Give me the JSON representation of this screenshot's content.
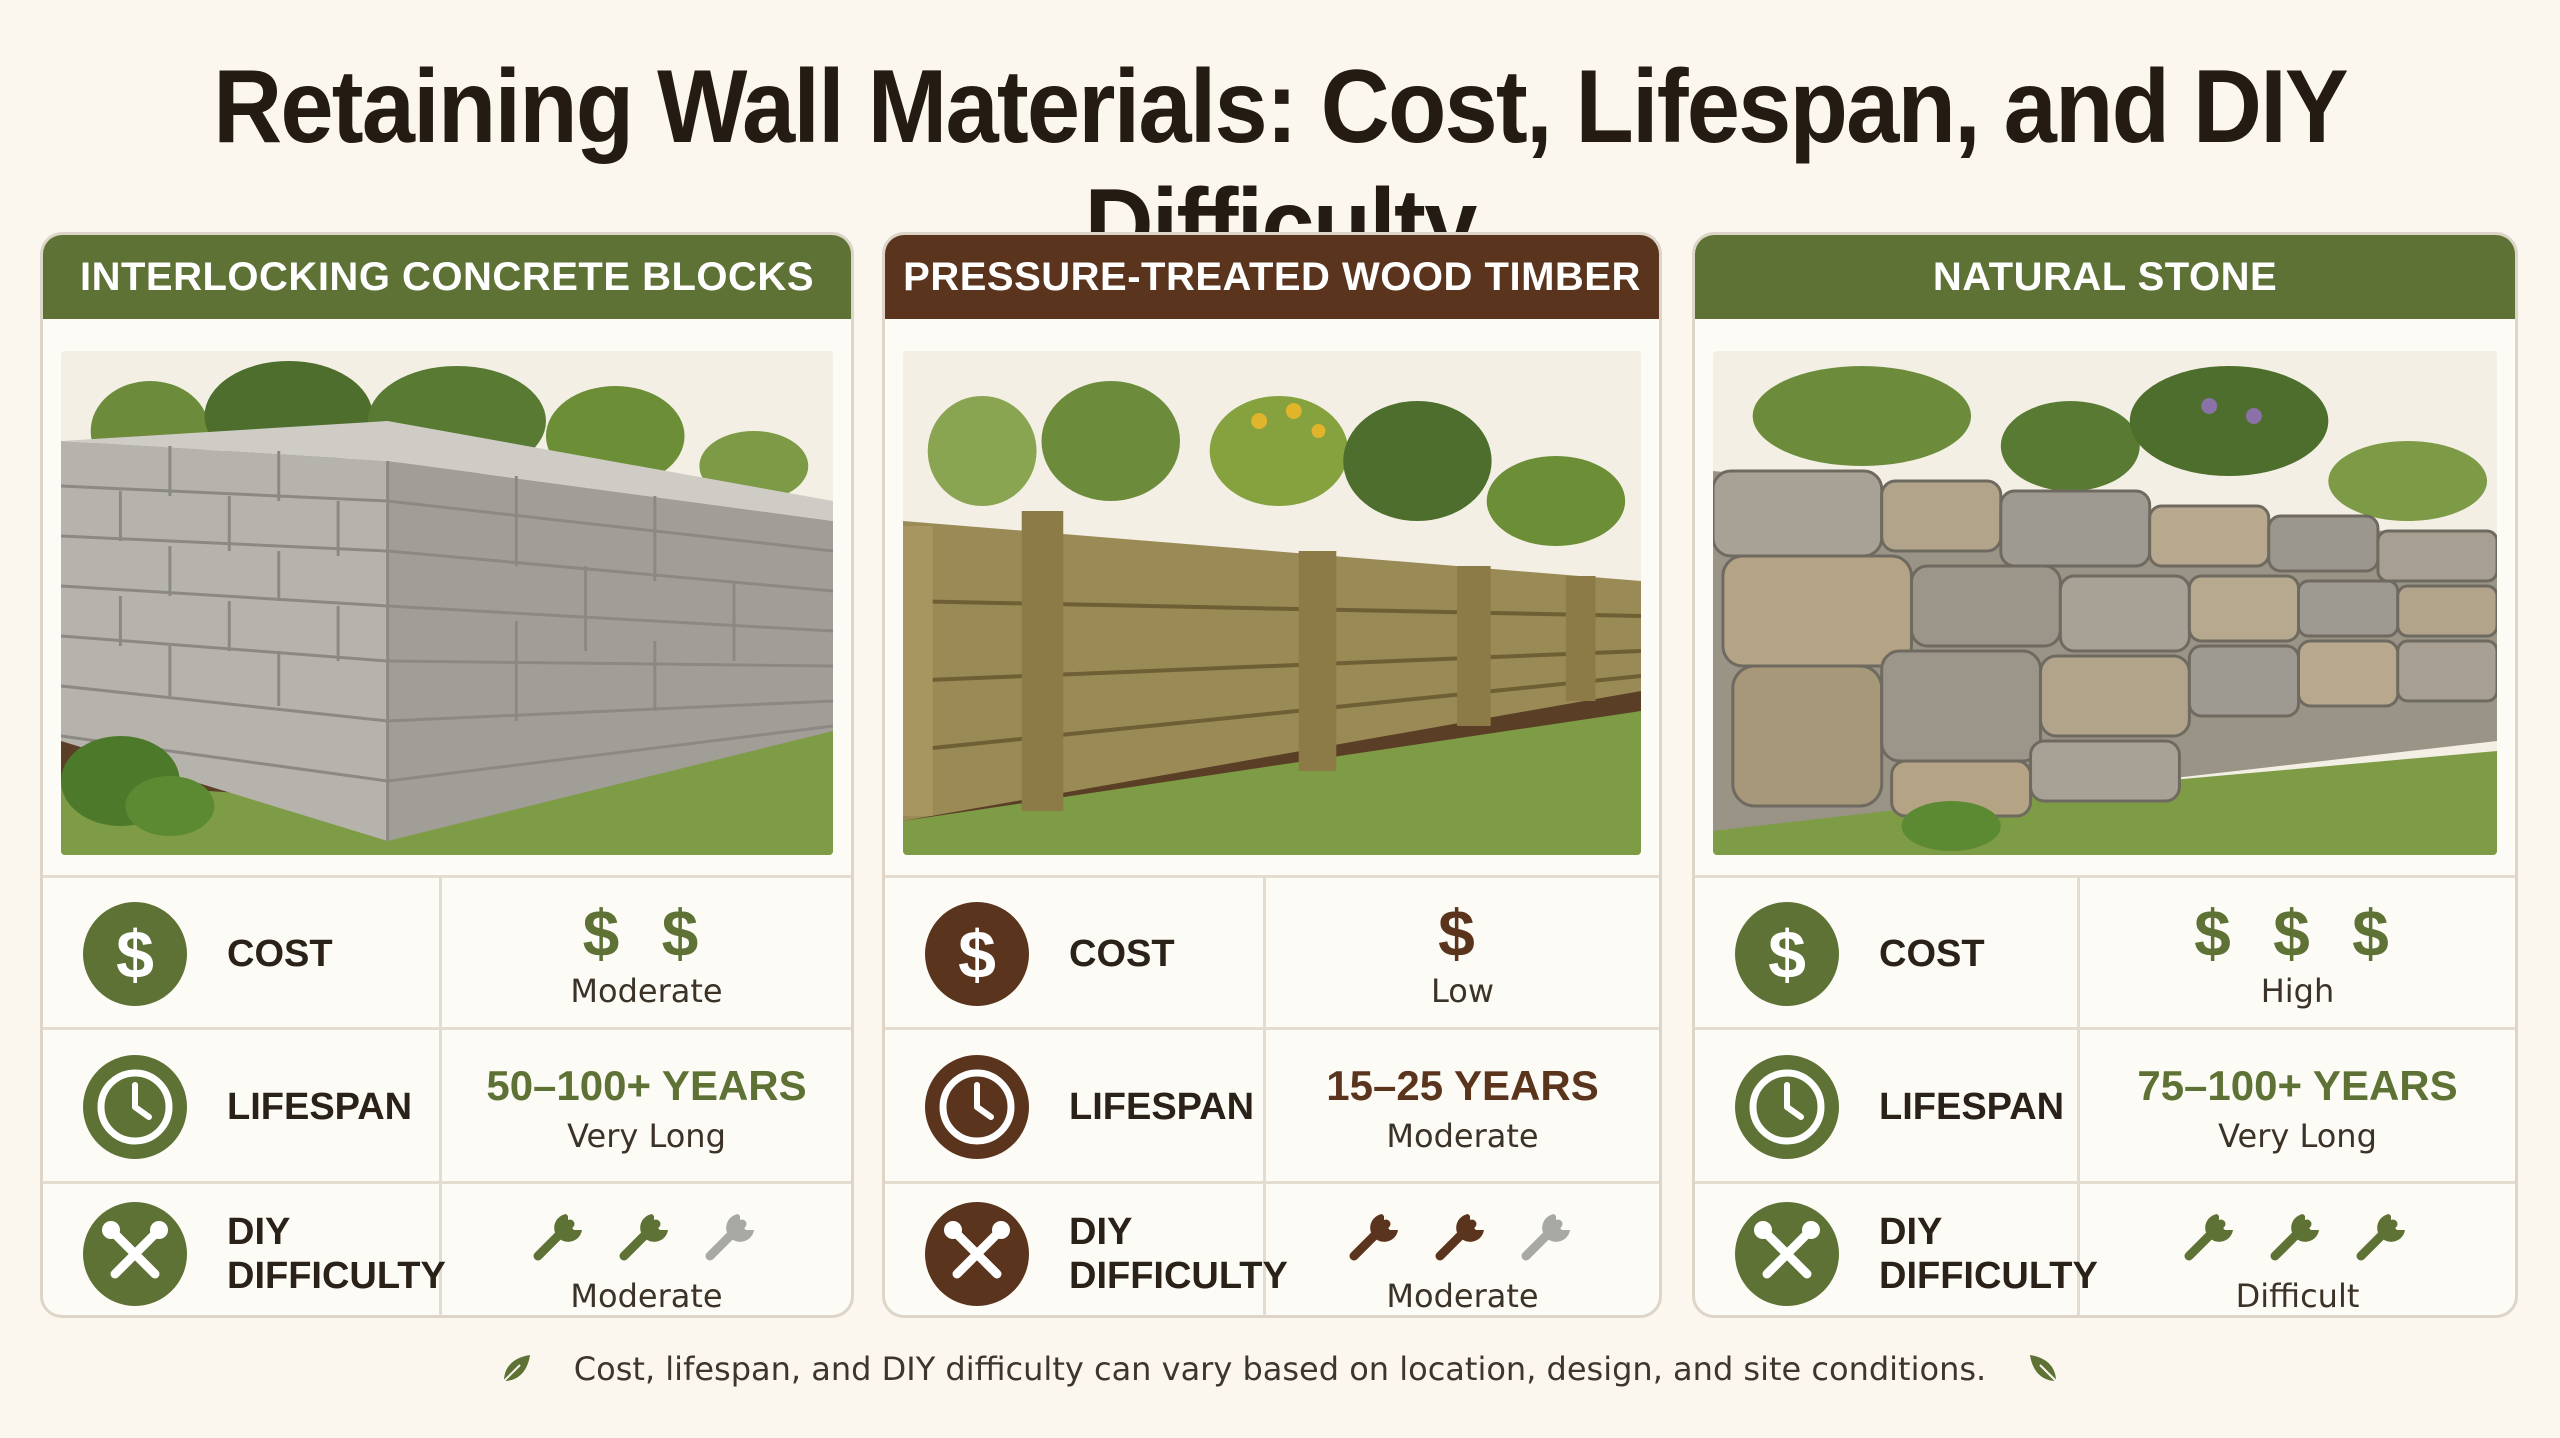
{
  "title": "Retaining Wall Materials: Cost, Lifespan, and DIY Difficulty",
  "colors": {
    "green": "#5e7235",
    "brown": "#5a341c",
    "gray_wrench": "#a8a8a4",
    "background": "#fbf7ef"
  },
  "cards": [
    {
      "header": "INTERLOCKING CONCRETE BLOCKS",
      "accent": "#5e7235",
      "image": "concrete-block-wall-illustration",
      "cost_label": "COST",
      "cost_symbols": "$ $",
      "cost_level": 2,
      "cost_text": "Moderate",
      "lifespan_label": "LIFESPAN",
      "lifespan_value": "50–100+ YEARS",
      "lifespan_text": "Very Long",
      "diy_label": "DIY\nDIFFICULTY",
      "diy_level": 2,
      "diy_max": 3,
      "diy_text": "Moderate"
    },
    {
      "header": "PRESSURE-TREATED WOOD TIMBER",
      "accent": "#5a341c",
      "image": "wood-timber-wall-illustration",
      "cost_label": "COST",
      "cost_symbols": "$",
      "cost_level": 1,
      "cost_text": "Low",
      "lifespan_label": "LIFESPAN",
      "lifespan_value": "15–25 YEARS",
      "lifespan_text": "Moderate",
      "diy_label": "DIY\nDIFFICULTY",
      "diy_level": 2,
      "diy_max": 3,
      "diy_text": "Moderate"
    },
    {
      "header": "NATURAL STONE",
      "accent": "#5e7235",
      "image": "natural-stone-wall-illustration",
      "cost_label": "COST",
      "cost_symbols": "$ $ $",
      "cost_level": 3,
      "cost_text": "High",
      "lifespan_label": "LIFESPAN",
      "lifespan_value": "75–100+ YEARS",
      "lifespan_text": "Very Long",
      "diy_label": "DIY\nDIFFICULTY",
      "diy_level": 3,
      "diy_max": 3,
      "diy_text": "Difficult"
    }
  ],
  "footer": "Cost, lifespan, and DIY difficulty can vary based on location, design, and site conditions."
}
